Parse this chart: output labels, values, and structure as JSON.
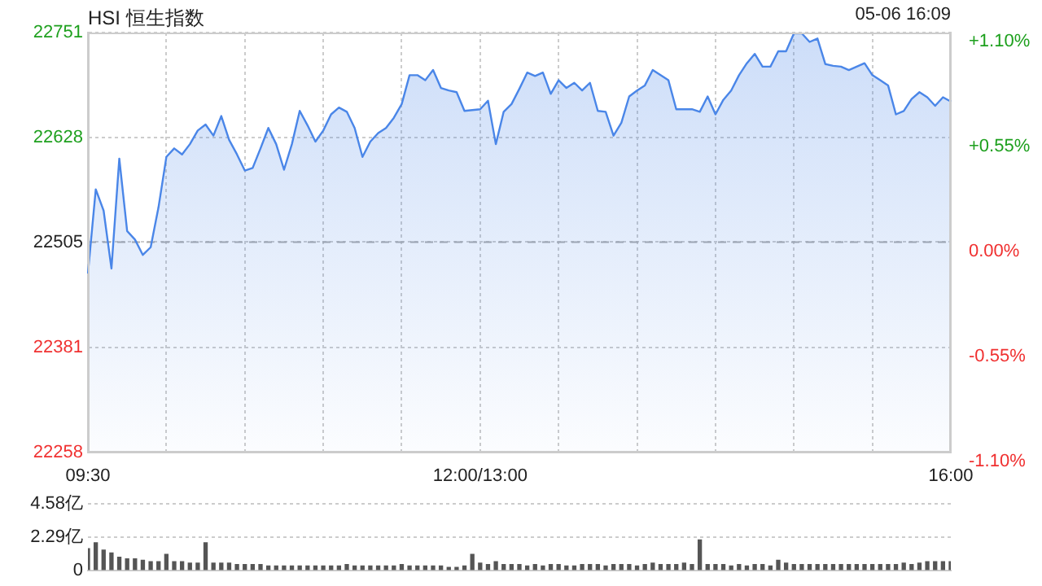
{
  "chart_data": [
    {
      "type": "area",
      "title": "HSI 恒生指数",
      "annotations": [
        "05-06 16:09"
      ],
      "marker": "none",
      "grid": true,
      "categories": [
        "09:30",
        null,
        null,
        null,
        null,
        null,
        null,
        null,
        null,
        null,
        null,
        null,
        null,
        null,
        null,
        null,
        null,
        null,
        null,
        null,
        null,
        null,
        null,
        null,
        null,
        null,
        null,
        null,
        null,
        null,
        null,
        null,
        null,
        null,
        null,
        null,
        null,
        null,
        null,
        null,
        null,
        null,
        null,
        null,
        null,
        null,
        null,
        null,
        null,
        null,
        "12:00/13:00",
        null,
        null,
        null,
        null,
        null,
        null,
        null,
        null,
        null,
        null,
        null,
        null,
        null,
        null,
        null,
        null,
        null,
        null,
        null,
        null,
        null,
        null,
        null,
        null,
        null,
        null,
        null,
        null,
        null,
        null,
        null,
        null,
        null,
        null,
        null,
        null,
        null,
        null,
        null,
        null,
        null,
        null,
        null,
        null,
        null,
        null,
        null,
        null,
        null,
        null,
        null,
        null,
        null,
        null,
        null,
        null,
        null,
        null,
        null,
        "16:00"
      ],
      "series": [
        {
          "color": "#4a86e8",
          "values": [
            22468,
            22567,
            22542,
            22474,
            22603,
            22518,
            22508,
            22490,
            22499,
            22546,
            22605,
            22615,
            22608,
            22620,
            22636,
            22643,
            22630,
            22653,
            22625,
            22608,
            22589,
            22592,
            22615,
            22639,
            22620,
            22590,
            22620,
            22659,
            22642,
            22623,
            22636,
            22655,
            22663,
            22658,
            22639,
            22605,
            22623,
            22633,
            22639,
            22651,
            22667,
            22701,
            22701,
            22695,
            22707,
            22686,
            22683,
            22681,
            22659,
            22660,
            22661,
            22671,
            22620,
            22658,
            22667,
            22685,
            22704,
            22700,
            22704,
            22679,
            22695,
            22686,
            22692,
            22683,
            22692,
            22659,
            22658,
            22630,
            22645,
            22676,
            22683,
            22689,
            22707,
            22701,
            22695,
            22661,
            22661,
            22661,
            22658,
            22676,
            22655,
            22672,
            22683,
            22701,
            22715,
            22726,
            22711,
            22711,
            22729,
            22729,
            22750,
            22750,
            22740,
            22744,
            22714,
            22712,
            22711,
            22707,
            22711,
            22715,
            22701,
            22695,
            22689,
            22655,
            22659,
            22673,
            22681,
            22675,
            22665,
            22675,
            22670
          ]
        }
      ],
      "ylim": [
        22258,
        22751
      ],
      "yticks": [
        22258,
        22381,
        22505,
        22628,
        22751
      ],
      "y2lim": [
        -1.1,
        1.1
      ],
      "y2ticks": [
        {
          "value": -1.1,
          "label": "-1.10%"
        },
        {
          "value": -0.55,
          "label": "-0.55%"
        },
        {
          "value": 0,
          "label": "0.00%"
        },
        {
          "value": 0.55,
          "label": "+0.55%"
        },
        {
          "value": 1.1,
          "label": "+1.10%"
        }
      ],
      "ref_lines": [
        {
          "axis": "y",
          "value": 22505,
          "line_style": "dashed",
          "color": "#aaaaaa"
        }
      ]
    },
    {
      "type": "bar",
      "grid": "y",
      "tick_labels": "y",
      "categories": [
        null,
        null,
        null,
        null,
        null,
        null,
        null,
        null,
        null,
        null,
        null,
        null,
        null,
        null,
        null,
        null,
        null,
        null,
        null,
        null,
        null,
        null,
        null,
        null,
        null,
        null,
        null,
        null,
        null,
        null,
        null,
        null,
        null,
        null,
        null,
        null,
        null,
        null,
        null,
        null,
        null,
        null,
        null,
        null,
        null,
        null,
        null,
        null,
        null,
        null,
        null,
        null,
        null,
        null,
        null,
        null,
        null,
        null,
        null,
        null,
        null,
        null,
        null,
        null,
        null,
        null,
        null,
        null,
        null,
        null,
        null,
        null,
        null,
        null,
        null,
        null,
        null,
        null,
        null,
        null,
        null,
        null,
        null,
        null,
        null,
        null,
        null,
        null,
        null,
        null,
        null,
        null,
        null,
        null,
        null,
        null,
        null,
        null,
        null,
        null,
        null,
        null,
        null,
        null,
        null,
        null,
        null,
        null,
        null,
        null,
        null
      ],
      "values": [
        1.5,
        1.9,
        1.4,
        1.2,
        0.9,
        0.8,
        0.8,
        0.7,
        0.6,
        0.6,
        1.1,
        0.6,
        0.6,
        0.5,
        0.5,
        1.9,
        0.5,
        0.5,
        0.5,
        0.4,
        0.4,
        0.4,
        0.4,
        0.3,
        0.3,
        0.3,
        0.3,
        0.3,
        0.3,
        0.3,
        0.3,
        0.3,
        0.3,
        0.4,
        0.3,
        0.3,
        0.3,
        0.3,
        0.3,
        0.3,
        0.4,
        0.3,
        0.3,
        0.3,
        0.3,
        0.3,
        0.2,
        0.2,
        0.3,
        1.1,
        0.5,
        0.4,
        0.6,
        0.4,
        0.4,
        0.4,
        0.3,
        0.4,
        0.3,
        0.4,
        0.4,
        0.3,
        0.3,
        0.4,
        0.4,
        0.4,
        0.3,
        0.4,
        0.4,
        0.4,
        0.3,
        0.4,
        0.5,
        0.4,
        0.4,
        0.4,
        0.5,
        0.4,
        2.1,
        0.4,
        0.4,
        0.4,
        0.3,
        0.4,
        0.3,
        0.4,
        0.4,
        0.3,
        0.7,
        0.5,
        0.4,
        0.4,
        0.4,
        0.4,
        0.4,
        0.4,
        0.4,
        0.4,
        0.4,
        0.4,
        0.4,
        0.4,
        0.4,
        0.4,
        0.5,
        0.4,
        0.5,
        0.6,
        0.6,
        0.6,
        0.6
      ],
      "color": "#555555",
      "ylim": [
        0,
        4.58
      ],
      "yticks": [
        0,
        {
          "value": 2.29,
          "label": "2.29亿"
        },
        {
          "value": 4.58,
          "label": "4.58亿"
        }
      ]
    }
  ]
}
